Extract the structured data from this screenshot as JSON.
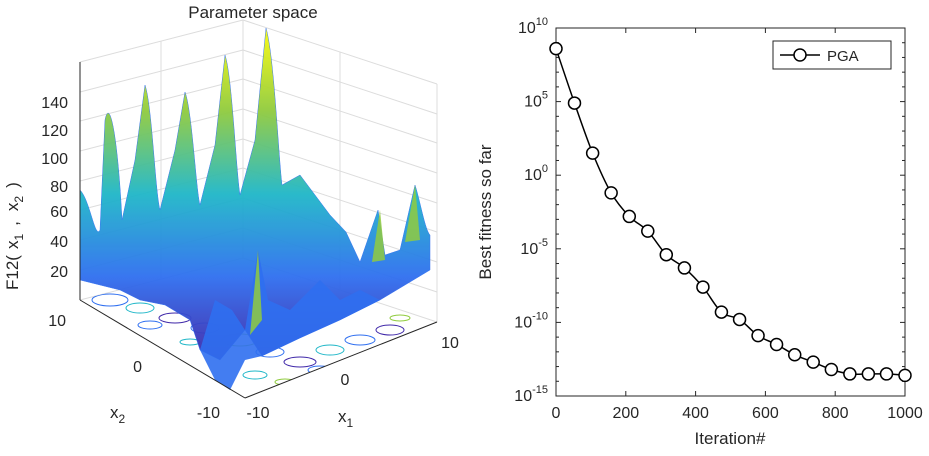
{
  "chart_data": [
    {
      "type": "surface",
      "title": "Parameter space",
      "zlabel": "F12( x₁ , x₂ )",
      "zlabel_parts": {
        "f": "F12(",
        "x": "x",
        "s1": "1",
        "comma": ",",
        "s2": "2",
        "close": ")"
      },
      "xlabel": "x₁",
      "xlabel_parts": {
        "x": "x",
        "s": "1"
      },
      "ylabel": "x₂",
      "ylabel_parts": {
        "x": "x",
        "s": "2"
      },
      "z_ticks": [
        "20",
        "40",
        "60",
        "80",
        "100",
        "120",
        "140"
      ],
      "x_ticks": [
        "-10",
        "0",
        "10"
      ],
      "y_ticks": [
        "10",
        "0",
        "-10"
      ],
      "zlim": [
        0,
        160
      ],
      "xlim": [
        -10,
        10
      ],
      "ylim": [
        -10,
        10
      ],
      "colormap": "parula",
      "colors": {
        "low": "#3e26a8",
        "mid": "#1fb7c8",
        "high": "#f9fb0e"
      }
    },
    {
      "type": "line",
      "scale": "log-y",
      "xlabel": "Iteration#",
      "ylabel": "Best fitness so far",
      "xlim": [
        0,
        1000
      ],
      "ylim_exp": [
        -15,
        10
      ],
      "x_ticks": [
        "0",
        "200",
        "400",
        "600",
        "800",
        "1000"
      ],
      "y_tick_base": "10",
      "y_tick_exps": [
        "10",
        "5",
        "0",
        "-5",
        "-10",
        "-15"
      ],
      "legend": {
        "label": "PGA",
        "position": "top-right"
      },
      "series": [
        {
          "name": "PGA",
          "color": "#000000",
          "marker": "circle",
          "x": [
            0,
            53,
            105,
            158,
            210,
            263,
            316,
            368,
            421,
            474,
            526,
            579,
            632,
            684,
            737,
            789,
            842,
            895,
            947,
            1000
          ],
          "y_log10": [
            8.6,
            4.9,
            1.5,
            -1.2,
            -2.8,
            -3.8,
            -5.4,
            -6.3,
            -7.6,
            -9.3,
            -9.8,
            -10.9,
            -11.5,
            -12.2,
            -12.7,
            -13.2,
            -13.5,
            -13.5,
            -13.5,
            -13.6
          ]
        }
      ]
    }
  ]
}
